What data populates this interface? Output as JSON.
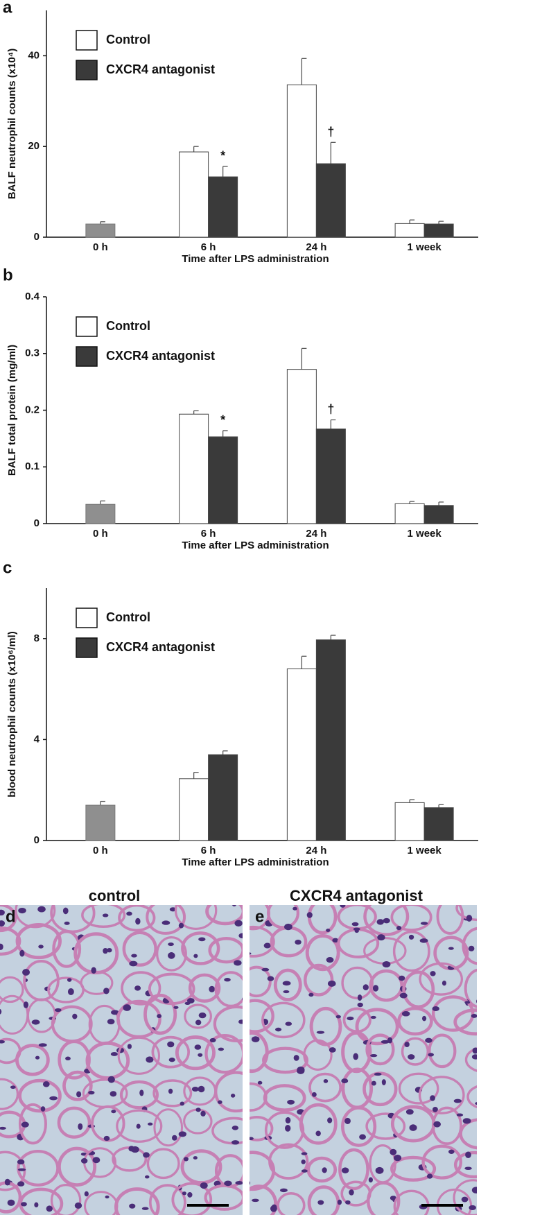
{
  "chart_data": [
    {
      "type": "bar",
      "panel_label": "a",
      "ylabel": "BALF neutrophil counts (x10⁴)",
      "xlabel": "Time after LPS administration",
      "categories": [
        "0 h",
        "6 h",
        "24 h",
        "1 week"
      ],
      "single_color": "#8f8f8f",
      "series": [
        {
          "name": "Control",
          "color": "#ffffff",
          "values": [
            2.9,
            18.8,
            33.6,
            3.0
          ],
          "errors": [
            0.5,
            1.2,
            5.8,
            0.8
          ],
          "markers": [
            null,
            null,
            null,
            null
          ]
        },
        {
          "name": "CXCR4 antagonist",
          "color": "#3a3a3a",
          "values": [
            null,
            13.3,
            16.2,
            2.9
          ],
          "errors": [
            null,
            2.3,
            4.7,
            0.6
          ],
          "markers": [
            null,
            "*",
            "†",
            null
          ]
        }
      ],
      "ylim": [
        0,
        50
      ],
      "yticks": [
        0,
        20,
        40
      ]
    },
    {
      "type": "bar",
      "panel_label": "b",
      "ylabel": "BALF total protein (mg/ml)",
      "xlabel": "Time after LPS administration",
      "categories": [
        "0 h",
        "6 h",
        "24 h",
        "1 week"
      ],
      "single_color": "#8f8f8f",
      "series": [
        {
          "name": "Control",
          "color": "#ffffff",
          "values": [
            0.034,
            0.193,
            0.272,
            0.035
          ],
          "errors": [
            0.006,
            0.006,
            0.037,
            0.004
          ],
          "markers": [
            null,
            null,
            null,
            null
          ]
        },
        {
          "name": "CXCR4 antagonist",
          "color": "#3a3a3a",
          "values": [
            null,
            0.153,
            0.167,
            0.032
          ],
          "errors": [
            null,
            0.011,
            0.016,
            0.006
          ],
          "markers": [
            null,
            "*",
            "†",
            null
          ]
        }
      ],
      "ylim": [
        0,
        0.4
      ],
      "yticks": [
        0,
        0.1,
        0.2,
        0.3,
        0.4
      ]
    },
    {
      "type": "bar",
      "panel_label": "c",
      "ylabel": "blood neutrophil counts (x10⁶/ml)",
      "xlabel": "Time after LPS administration",
      "categories": [
        "0 h",
        "6 h",
        "24 h",
        "1 week"
      ],
      "single_color": "#8f8f8f",
      "series": [
        {
          "name": "Control",
          "color": "#ffffff",
          "values": [
            1.4,
            2.45,
            6.8,
            1.5
          ],
          "errors": [
            0.15,
            0.25,
            0.5,
            0.12
          ],
          "markers": [
            null,
            null,
            null,
            null
          ]
        },
        {
          "name": "CXCR4 antagonist",
          "color": "#3a3a3a",
          "values": [
            null,
            3.4,
            7.95,
            1.3
          ],
          "errors": [
            null,
            0.15,
            0.18,
            0.12
          ],
          "markers": [
            null,
            null,
            null,
            null
          ]
        }
      ],
      "ylim": [
        0,
        10
      ],
      "yticks": [
        0,
        4,
        8
      ]
    }
  ],
  "micrographs": [
    {
      "label": "d",
      "title": "control"
    },
    {
      "label": "e",
      "title": "CXCR4 antagonist"
    }
  ]
}
